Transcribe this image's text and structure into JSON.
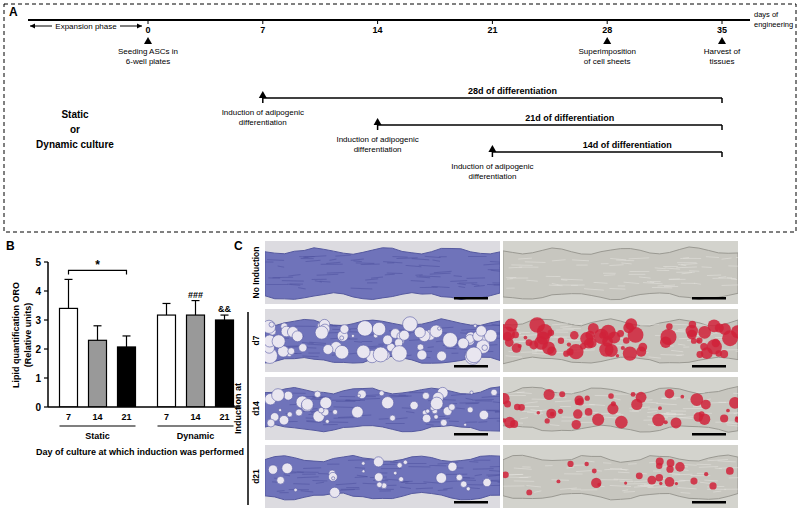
{
  "panel_labels": [
    "A",
    "B",
    "C"
  ],
  "panel_a": {
    "axis_label": [
      "days of",
      "engineering"
    ],
    "expansion_label": "Expansion phase",
    "days": [
      0,
      7,
      14,
      21,
      28,
      35
    ],
    "end_day": 35,
    "events": [
      {
        "day": 0,
        "lines": [
          "Seeding ASCs in",
          "6-well plates"
        ]
      },
      {
        "day": 28,
        "lines": [
          "Superimposition",
          "of cell sheets"
        ]
      },
      {
        "day": 35,
        "lines": [
          "Harvest of",
          "tissues"
        ]
      }
    ],
    "conditions": [
      "Static",
      "or",
      "Dynamic culture"
    ],
    "inductions": [
      {
        "day": 7,
        "lines": [
          "Induction of adipogenic",
          "differentiation"
        ],
        "duration_label": "28d of differentiation"
      },
      {
        "day": 14,
        "lines": [
          "Induction of adipogenic",
          "differentiation"
        ],
        "duration_label": "21d of differentiation"
      },
      {
        "day": 21,
        "lines": [
          "Induction of adipogenic",
          "differentiation"
        ],
        "duration_label": "14d of differentiation"
      }
    ]
  },
  "chart_data": {
    "type": "bar",
    "y_label": [
      "Lipid quantification ORO",
      "(Relative units)"
    ],
    "x_label": "Day of culture at which induction was performed",
    "categories": [
      "7",
      "14",
      "21",
      "7",
      "14",
      "21"
    ],
    "group_labels": [
      "Static",
      "Dynamic"
    ],
    "values": [
      3.4,
      2.3,
      2.07,
      3.17,
      3.17,
      3.0
    ],
    "errors": [
      1.0,
      0.5,
      0.38,
      0.4,
      0.5,
      0.17
    ],
    "colors": [
      "#ffffff",
      "#999999",
      "#000000",
      "#ffffff",
      "#999999",
      "#000000"
    ],
    "ylim": [
      0,
      5
    ],
    "yticks": [
      0,
      1,
      2,
      3,
      4,
      5
    ],
    "annotations": [
      {
        "text": "*",
        "bars": [
          0,
          2
        ]
      },
      {
        "text": "###",
        "bars": [
          4
        ]
      },
      {
        "text": "&&",
        "bars": [
          5
        ]
      }
    ]
  },
  "panel_c": {
    "rows": [
      "No Induction",
      "d7",
      "d14",
      "d21"
    ],
    "group_label": "Induction at"
  }
}
